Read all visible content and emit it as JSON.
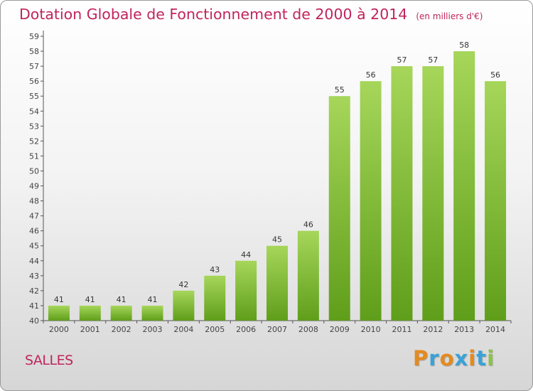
{
  "header": {
    "title": "Dotation Globale de Fonctionnement de 2000 à 2014",
    "unit": "(en milliers d'€)"
  },
  "commune": "SALLES",
  "brand": {
    "text": "Proxiti",
    "letter_colors": [
      "#e58a1d",
      "#3aa2d8",
      "#e58a1d",
      "#3aa2d8",
      "#e58a1d",
      "#3aa2d8",
      "#8bc34a"
    ]
  },
  "colors": {
    "bar_top": "#a6d65a",
    "bar_bottom": "#5f9e1a",
    "text_accent": "#c0245c"
  },
  "chart_data": {
    "type": "bar",
    "title": "Dotation Globale de Fonctionnement de 2000 à 2014",
    "subtitle": "(en milliers d'€)",
    "categories": [
      "2000",
      "2001",
      "2002",
      "2003",
      "2004",
      "2005",
      "2006",
      "2007",
      "2008",
      "2009",
      "2010",
      "2011",
      "2012",
      "2013",
      "2014"
    ],
    "values": [
      41,
      41,
      41,
      41,
      42,
      43,
      44,
      45,
      46,
      55,
      56,
      57,
      57,
      58,
      56
    ],
    "ylim": [
      40,
      59
    ],
    "ytick_step": 1,
    "grid": false,
    "data_labels": true
  }
}
